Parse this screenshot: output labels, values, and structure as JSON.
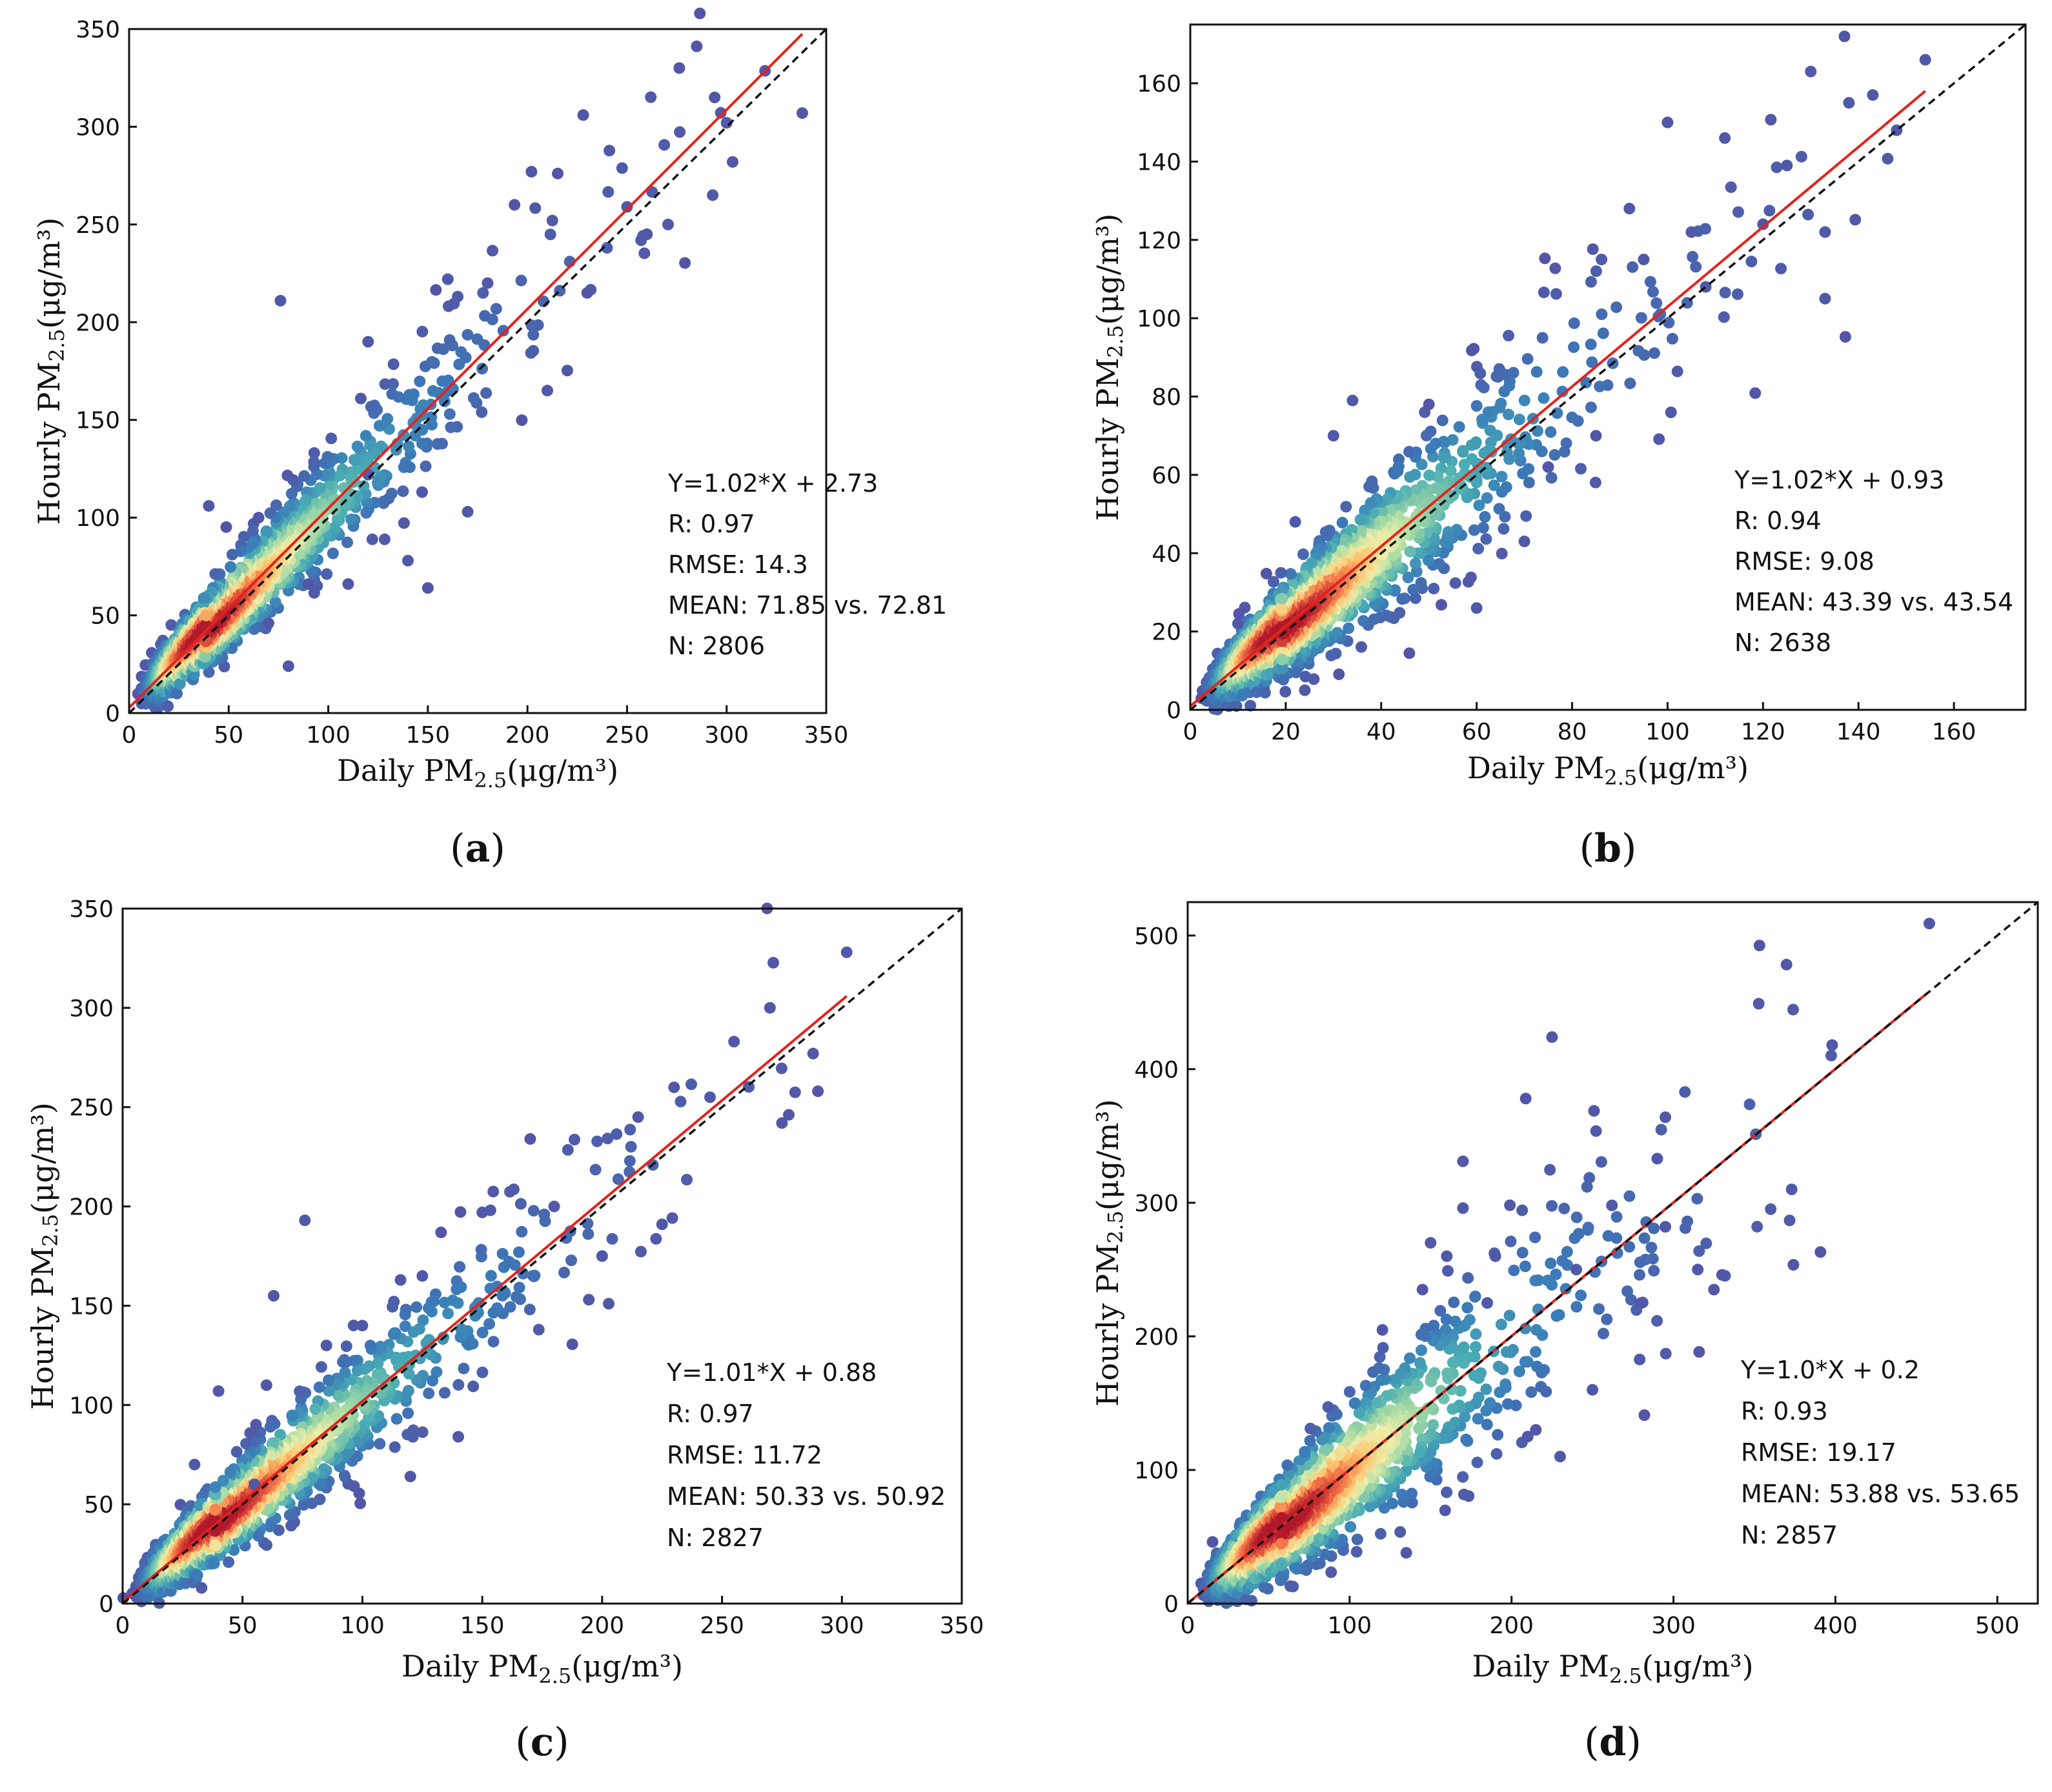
{
  "figure": {
    "panels": [
      {
        "id": "a",
        "label": "a"
      },
      {
        "id": "b",
        "label": "b"
      },
      {
        "id": "c",
        "label": "c"
      },
      {
        "id": "d",
        "label": "d"
      }
    ]
  },
  "chart_data": [
    {
      "type": "scatter",
      "panel": "a",
      "xlabel": {
        "prefix": "Daily PM",
        "sub": "2.5",
        "suffix": "(μg/m³)"
      },
      "ylabel": {
        "prefix": "Hourly PM",
        "sub": "2.5",
        "suffix": "(μg/m³)"
      },
      "xlim": [
        0,
        350
      ],
      "ylim": [
        0,
        350
      ],
      "xticks": [
        0,
        50,
        100,
        150,
        200,
        250,
        300,
        350
      ],
      "yticks": [
        0,
        50,
        100,
        150,
        200,
        250,
        300,
        350
      ],
      "fit": {
        "slope": 1.02,
        "intercept": 2.73,
        "x_range": [
          0,
          338
        ]
      },
      "identity_line": true,
      "stats": [
        "Y=1.02*X + 2.73",
        "R: 0.97",
        "RMSE: 14.3",
        "MEAN: 71.85 vs. 72.81",
        "N: 2806"
      ],
      "n": 2806,
      "outliers": [
        [
          76,
          211
        ],
        [
          228,
          306
        ],
        [
          294,
          315
        ],
        [
          338,
          307
        ],
        [
          202,
          277
        ],
        [
          300,
          302
        ],
        [
          293,
          265
        ],
        [
          303,
          282
        ],
        [
          230,
          215
        ],
        [
          210,
          165
        ],
        [
          120,
          190
        ],
        [
          160,
          222
        ],
        [
          140,
          78
        ],
        [
          150,
          64
        ],
        [
          170,
          103
        ],
        [
          80,
          24
        ],
        [
          40,
          106
        ],
        [
          180,
          220
        ],
        [
          250,
          259
        ],
        [
          260,
          245
        ],
        [
          120,
          122
        ],
        [
          90,
          66
        ],
        [
          110,
          66
        ],
        [
          65,
          100
        ],
        [
          70,
          46
        ]
      ],
      "density_spread": 0.11
    },
    {
      "type": "scatter",
      "panel": "b",
      "xlabel": {
        "prefix": "Daily PM",
        "sub": "2.5",
        "suffix": "(μg/m³)"
      },
      "ylabel": {
        "prefix": "Hourly PM",
        "sub": "2.5",
        "suffix": "(μg/m³)"
      },
      "xlim": [
        0,
        175
      ],
      "ylim": [
        0,
        175
      ],
      "xticks": [
        0,
        20,
        40,
        60,
        80,
        100,
        120,
        140,
        160
      ],
      "yticks": [
        0,
        20,
        40,
        60,
        80,
        100,
        120,
        140,
        160
      ],
      "fit": {
        "slope": 1.02,
        "intercept": 0.93,
        "x_range": [
          0,
          154
        ]
      },
      "identity_line": true,
      "stats": [
        "Y=1.02*X + 0.93",
        "R: 0.94",
        "RMSE: 9.08",
        "MEAN: 43.39 vs. 43.54",
        "N: 2638"
      ],
      "n": 2638,
      "outliers": [
        [
          130,
          163
        ],
        [
          154,
          166
        ],
        [
          100,
          150
        ],
        [
          133,
          105
        ],
        [
          133,
          122
        ],
        [
          143,
          157
        ],
        [
          148,
          148
        ],
        [
          125,
          139
        ],
        [
          112,
          146
        ],
        [
          92,
          128
        ],
        [
          34,
          79
        ],
        [
          22,
          48
        ],
        [
          70,
          43
        ],
        [
          10,
          22
        ],
        [
          24,
          5
        ],
        [
          108,
          108
        ],
        [
          120,
          124
        ],
        [
          30,
          70
        ],
        [
          60,
          26
        ],
        [
          85,
          70
        ],
        [
          50,
          78
        ],
        [
          75,
          62
        ],
        [
          95,
          115
        ],
        [
          105,
          122
        ],
        [
          138,
          155
        ]
      ],
      "density_spread": 0.17
    },
    {
      "type": "scatter",
      "panel": "c",
      "xlabel": {
        "prefix": "Daily PM",
        "sub": "2.5",
        "suffix": "(μg/m³)"
      },
      "ylabel": {
        "prefix": "Hourly PM",
        "sub": "2.5",
        "suffix": "(μg/m³)"
      },
      "xlim": [
        0,
        350
      ],
      "ylim": [
        0,
        350
      ],
      "xticks": [
        0,
        50,
        100,
        150,
        200,
        250,
        300,
        350
      ],
      "yticks": [
        0,
        50,
        100,
        150,
        200,
        250,
        300,
        350
      ],
      "fit": {
        "slope": 1.01,
        "intercept": 0.88,
        "x_range": [
          0,
          302
        ]
      },
      "identity_line": true,
      "stats": [
        "Y=1.01*X + 0.88",
        "R: 0.97",
        "RMSE: 11.72",
        "MEAN: 50.33 vs. 50.92",
        "N: 2827"
      ],
      "n": 2827,
      "outliers": [
        [
          302,
          328
        ],
        [
          270,
          300
        ],
        [
          76,
          193
        ],
        [
          170,
          234
        ],
        [
          63,
          155
        ],
        [
          40,
          107
        ],
        [
          140,
          84
        ],
        [
          275,
          242
        ],
        [
          290,
          258
        ],
        [
          288,
          277
        ],
        [
          230,
          260
        ],
        [
          225,
          191
        ],
        [
          150,
          197
        ],
        [
          120,
          64
        ],
        [
          55,
          60
        ],
        [
          85,
          130
        ],
        [
          60,
          110
        ],
        [
          30,
          70
        ],
        [
          200,
          175
        ],
        [
          255,
          283
        ],
        [
          215,
          245
        ],
        [
          125,
          165
        ],
        [
          100,
          140
        ],
        [
          180,
          200
        ],
        [
          245,
          255
        ]
      ],
      "density_spread": 0.12
    },
    {
      "type": "scatter",
      "panel": "d",
      "xlabel": {
        "prefix": "Daily PM",
        "sub": "2.5",
        "suffix": "(μg/m³)"
      },
      "ylabel": {
        "prefix": "Hourly PM",
        "sub": "2.5",
        "suffix": "(μg/m³)"
      },
      "xlim": [
        0,
        525
      ],
      "ylim": [
        0,
        525
      ],
      "xticks": [
        0,
        100,
        200,
        300,
        400,
        500
      ],
      "yticks": [
        0,
        100,
        200,
        300,
        400,
        500
      ],
      "fit": {
        "slope": 1.0,
        "intercept": 0.2,
        "x_range": [
          0,
          457
        ]
      },
      "identity_line": true,
      "stats": [
        "Y=1.0*X + 0.2",
        "R: 0.93",
        "RMSE: 19.17",
        "MEAN: 53.88 vs. 53.65",
        "N: 2857"
      ],
      "n": 2857,
      "outliers": [
        [
          458,
          509
        ],
        [
          225,
          424
        ],
        [
          398,
          418
        ],
        [
          373,
          310
        ],
        [
          295,
          364
        ],
        [
          290,
          333
        ],
        [
          262,
          298
        ],
        [
          330,
          246
        ],
        [
          325,
          235
        ],
        [
          170,
          331
        ],
        [
          170,
          296
        ],
        [
          150,
          270
        ],
        [
          210,
          125
        ],
        [
          230,
          110
        ],
        [
          135,
          38
        ],
        [
          160,
          260
        ],
        [
          240,
          250
        ],
        [
          190,
          260
        ],
        [
          295,
          282
        ],
        [
          280,
          225
        ],
        [
          250,
          160
        ],
        [
          215,
          130
        ],
        [
          185,
          225
        ],
        [
          145,
          235
        ],
        [
          315,
          250
        ]
      ],
      "density_spread": 0.2
    }
  ]
}
